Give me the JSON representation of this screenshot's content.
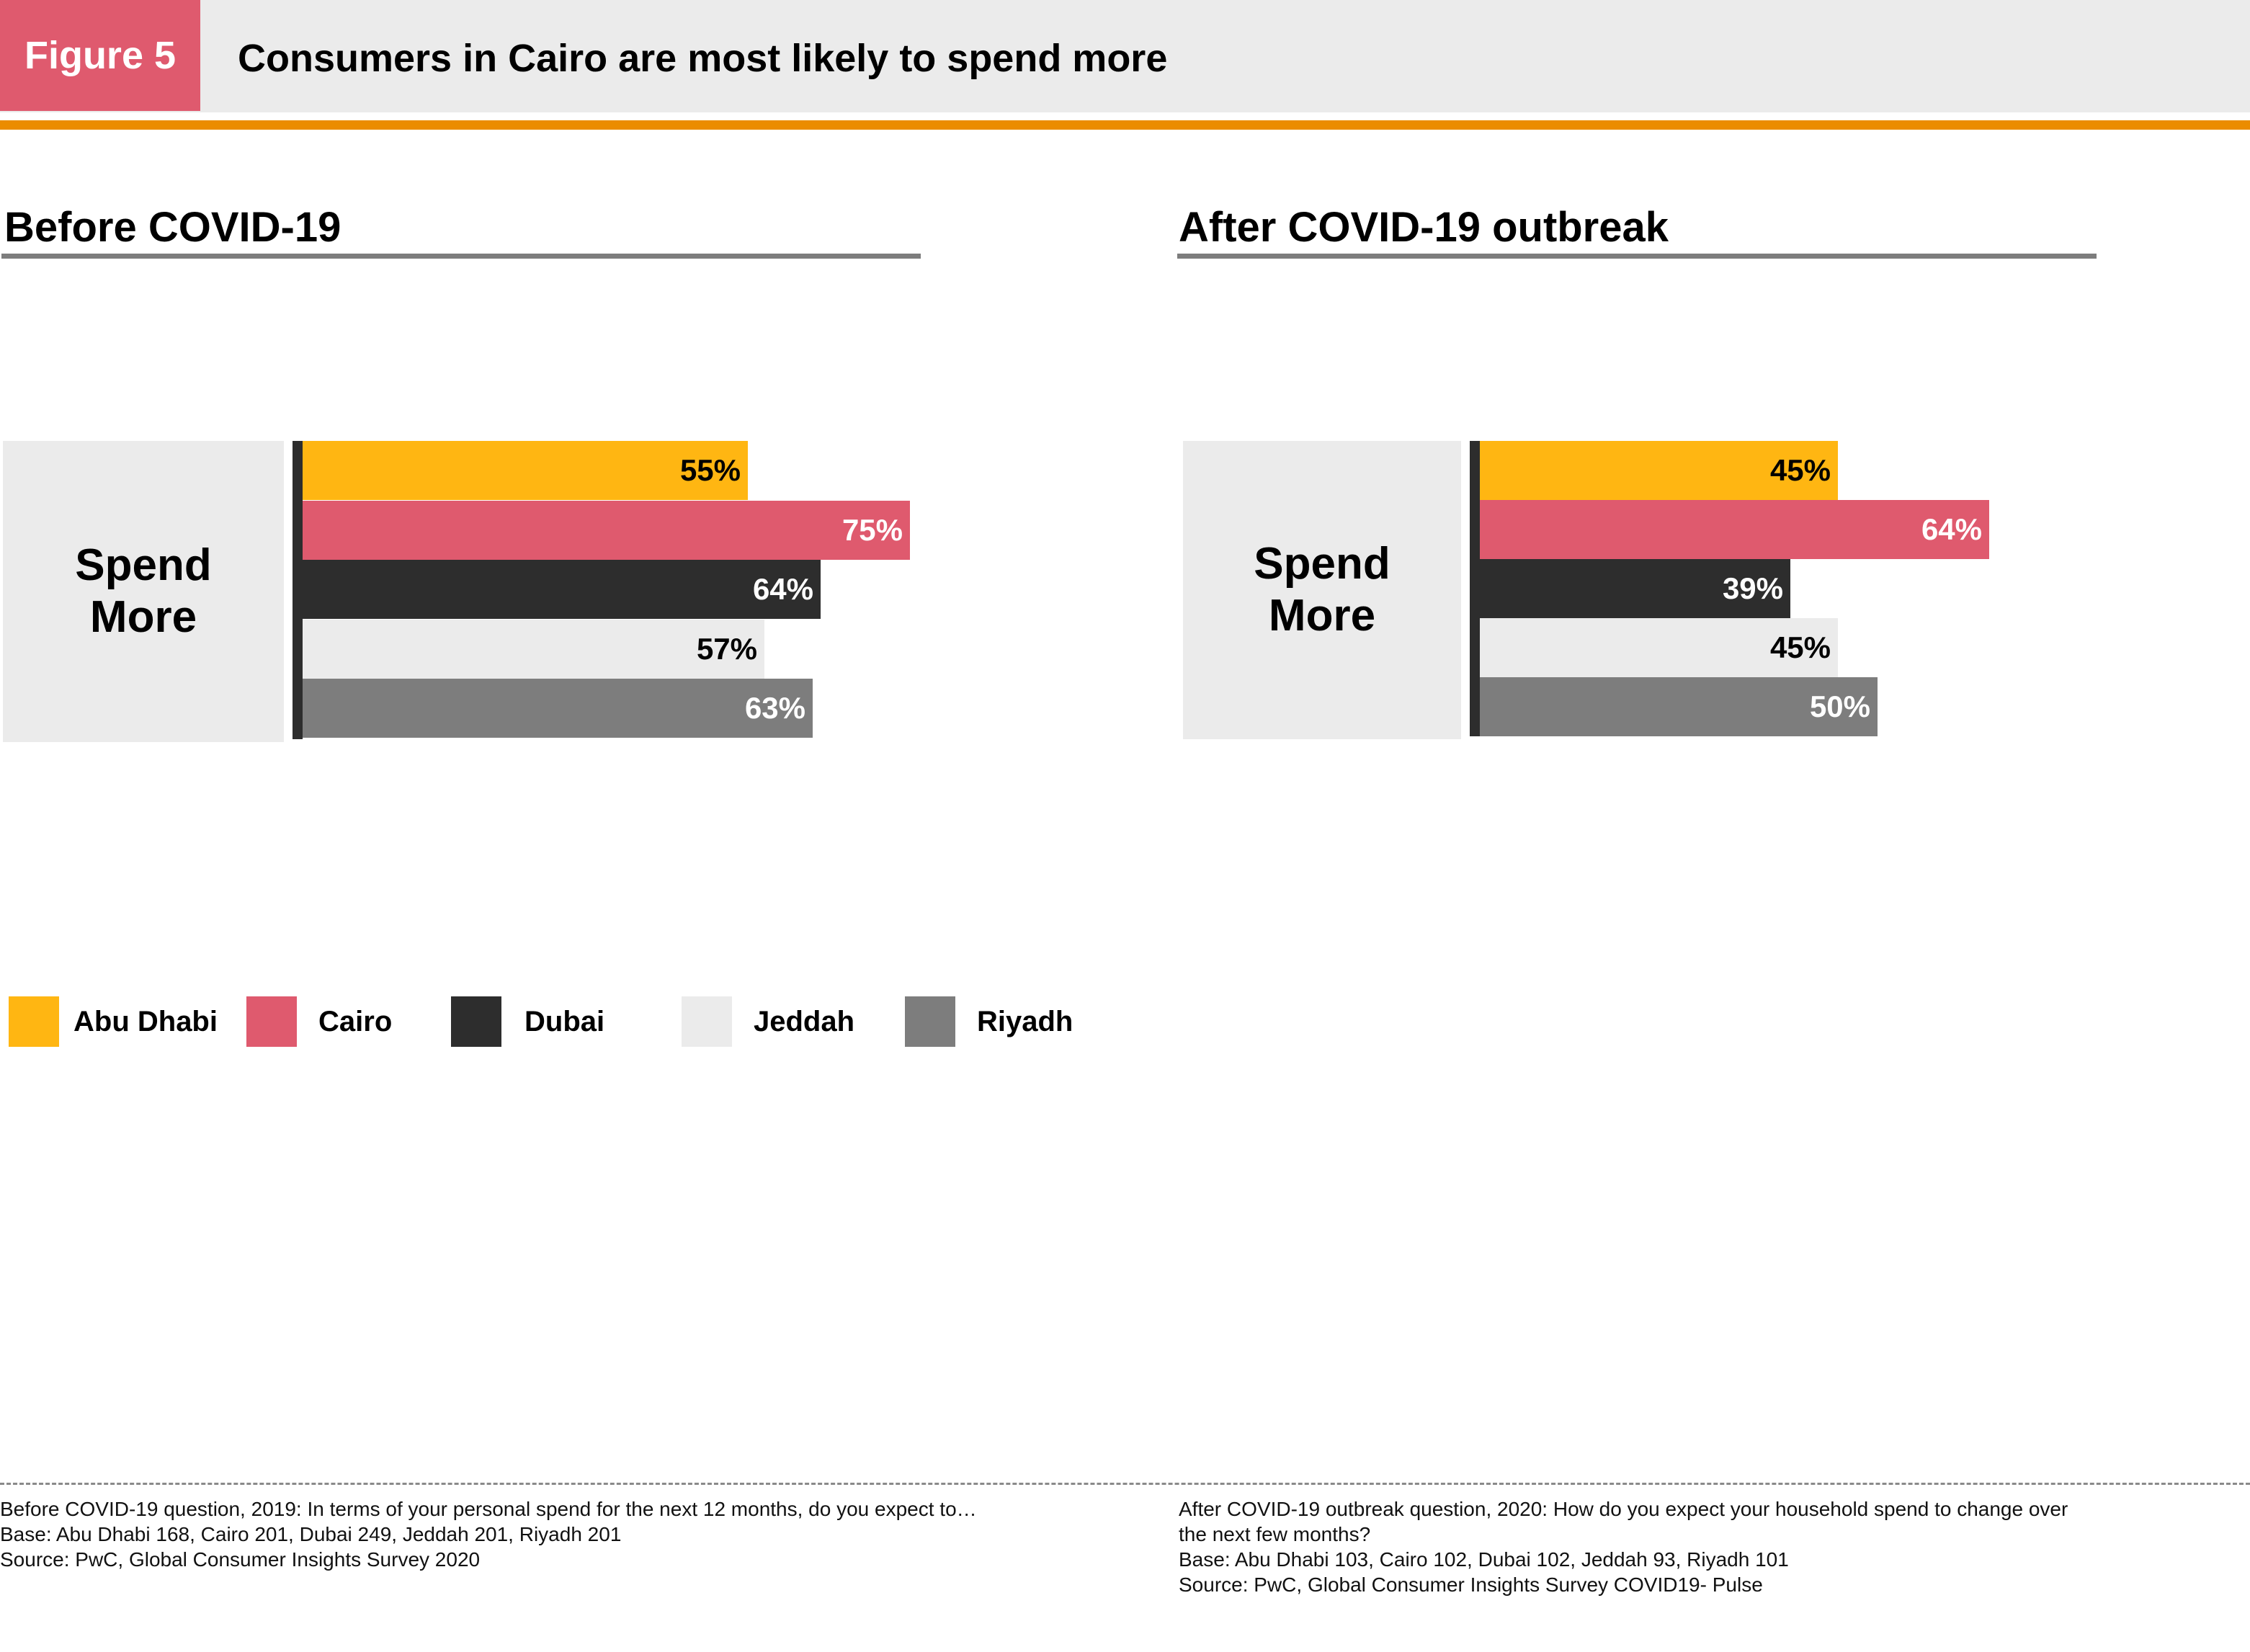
{
  "header": {
    "figure_label": "Figure 5",
    "title": "Consumers in Cairo are most likely to spend more"
  },
  "chart_data": [
    {
      "type": "bar",
      "orientation": "horizontal",
      "title": "Before COVID-19",
      "category_line1": "Spend",
      "category_line2": "More",
      "unit": "%",
      "xlim": [
        0,
        75
      ],
      "series": [
        {
          "name": "Abu Dhabi",
          "value": 55,
          "label": "55%"
        },
        {
          "name": "Cairo",
          "value": 75,
          "label": "75%"
        },
        {
          "name": "Dubai",
          "value": 64,
          "label": "64%"
        },
        {
          "name": "Jeddah",
          "value": 57,
          "label": "57%"
        },
        {
          "name": "Riyadh",
          "value": 63,
          "label": "63%"
        }
      ]
    },
    {
      "type": "bar",
      "orientation": "horizontal",
      "title": "After COVID-19 outbreak",
      "category_line1": "Spend",
      "category_line2": "More",
      "unit": "%",
      "xlim": [
        0,
        75
      ],
      "series": [
        {
          "name": "Abu Dhabi",
          "value": 45,
          "label": "45%"
        },
        {
          "name": "Cairo",
          "value": 64,
          "label": "64%"
        },
        {
          "name": "Dubai",
          "value": 39,
          "label": "39%"
        },
        {
          "name": "Jeddah",
          "value": 45,
          "label": "45%"
        },
        {
          "name": "Riyadh",
          "value": 50,
          "label": "50%"
        }
      ]
    }
  ],
  "legend": [
    {
      "name": "Abu Dhabi",
      "color": "#ffb612"
    },
    {
      "name": "Cairo",
      "color": "#df5a6e"
    },
    {
      "name": "Dubai",
      "color": "#2d2d2d"
    },
    {
      "name": "Jeddah",
      "color": "#ebebeb"
    },
    {
      "name": "Riyadh",
      "color": "#7d7d7d"
    }
  ],
  "label_colors": {
    "Abu Dhabi": "#000000",
    "Cairo": "#ffffff",
    "Dubai": "#ffffff",
    "Jeddah": "#000000",
    "Riyadh": "#ffffff"
  },
  "footnotes": {
    "left": [
      "Before COVID-19 question, 2019: In terms of your personal spend for the next 12 months, do you expect to…",
      "Base: Abu Dhabi 168, Cairo 201, Dubai 249, Jeddah 201, Riyadh 201",
      "Source: PwC, Global Consumer Insights Survey 2020"
    ],
    "right": [
      "After COVID-19 outbreak question, 2020:  How do you expect your household spend to change over",
      "the next few months?",
      "Base: Abu Dhabi 103, Cairo 102, Dubai 102, Jeddah 93, Riyadh 101",
      "Source: PwC, Global Consumer Insights Survey COVID19- Pulse"
    ]
  }
}
